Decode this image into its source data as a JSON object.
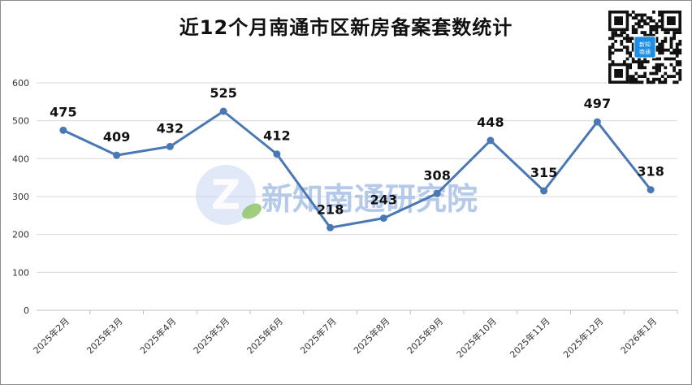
{
  "chart_data": {
    "type": "line",
    "title": "近12个月南通市区新房备案套数统计",
    "categories": [
      "2025年2月",
      "2025年3月",
      "2025年4月",
      "2025年5月",
      "2025年6月",
      "2025年7月",
      "2025年8月",
      "2025年9月",
      "2025年10月",
      "2025年11月",
      "2025年12月",
      "2026年1月"
    ],
    "series": [
      {
        "values": [
          475,
          409,
          432,
          525,
          412,
          218,
          243,
          308,
          448,
          315,
          497,
          318
        ]
      }
    ],
    "ylim": [
      0,
      600
    ],
    "yticks": [
      0,
      100,
      200,
      300,
      400,
      500,
      600
    ],
    "grid": true,
    "data_labels": true,
    "line_color": "#4a78b5"
  },
  "watermark": {
    "text": "新知南通研究院"
  },
  "qr_badge": {
    "line1": "新知",
    "line2": "南通"
  },
  "colors": {
    "line": "#4a78b5",
    "grid": "#d9d9d9",
    "watermark": "#a9c0e8",
    "leaf": "#8fc46a",
    "qr_badge": "#1a8fe3"
  }
}
